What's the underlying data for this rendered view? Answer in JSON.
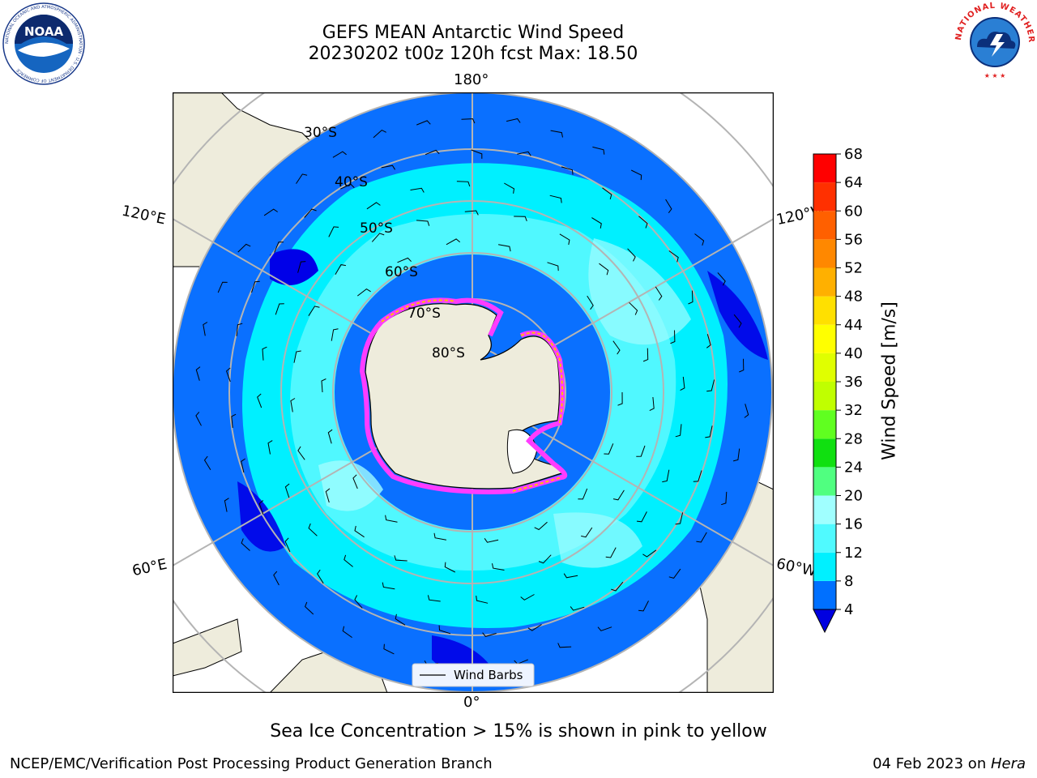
{
  "header": {
    "title_line1": "GEFS MEAN Antarctic Wind Speed",
    "title_line2": "20230202 t00z 120h fcst   Max: 18.50"
  },
  "logos": {
    "noaa": {
      "text": "NOAA",
      "ring_text": "NATIONAL OCEANIC AND ATMOSPHERIC ADMINISTRATION · U.S. DEPARTMENT OF COMMERCE"
    },
    "nws": {
      "ring_text": "NATIONAL WEATHER SERVICE"
    }
  },
  "map": {
    "projection": "south polar stereographic",
    "longitude_labels": {
      "top": "180°",
      "bottom": "0°",
      "upper_left": "120°E",
      "upper_right": "120°W",
      "lower_left": "60°E",
      "lower_right": "60°W"
    },
    "latitude_labels": [
      "30°S",
      "40°S",
      "50°S",
      "60°S",
      "70°S",
      "80°S"
    ],
    "legend_label": "Wind Barbs",
    "colors": {
      "land": "#eeecdc",
      "band_4_8": "#0a70ff",
      "band_8_12": "#00f0ff",
      "band_12_16": "#50f8ff",
      "band_16_20": "#a0fcff",
      "below_4": "#0000e8",
      "sea_ice": [
        "#ff3cff",
        "#ffc000",
        "#ffffff"
      ]
    }
  },
  "chart_data": {
    "type": "heatmap",
    "title": "GEFS MEAN Antarctic Wind Speed",
    "max_value": 18.5,
    "colorbar": {
      "label": "Wind Speed [m/s]",
      "ticks": [
        "4",
        "8",
        "12",
        "16",
        "20",
        "24",
        "28",
        "32",
        "36",
        "40",
        "44",
        "48",
        "52",
        "56",
        "60",
        "64",
        "68"
      ],
      "range": [
        4,
        68
      ],
      "extend": "min",
      "colors": [
        "#0070ff",
        "#00f0ff",
        "#50faff",
        "#a0ffff",
        "#50ff80",
        "#10e010",
        "#60ff20",
        "#c0ff00",
        "#e0ff00",
        "#ffff00",
        "#ffe000",
        "#ffb000",
        "#ff8800",
        "#ff6000",
        "#ff3000",
        "#ff0000"
      ],
      "under_color": "#0000e0"
    }
  },
  "subtitle": "Sea Ice Concentration > 15% is shown in pink to yellow",
  "footer": {
    "left": "NCEP/EMC/Verification Post Processing Product Generation Branch",
    "right_prefix": "04 Feb 2023 on ",
    "right_machine": "Hera"
  }
}
